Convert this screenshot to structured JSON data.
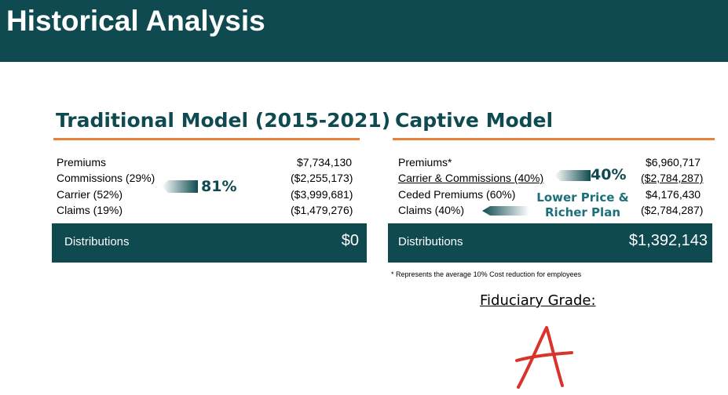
{
  "header": {
    "title": "Historical Analysis"
  },
  "traditional": {
    "title": "Traditional Model (2015-2021)",
    "rows": [
      {
        "label": "Premiums",
        "value": "$7,734,130"
      },
      {
        "label": "Commissions (29%)",
        "value": "($2,255,173)"
      },
      {
        "label": "Carrier (52%)",
        "value": "($3,999,681)"
      },
      {
        "label": "Claims (19%)",
        "value": "($1,479,276)"
      }
    ],
    "callout_pct": "81%",
    "distributions_label": "Distributions",
    "distributions_value": "$0"
  },
  "captive": {
    "title": "Captive Model",
    "rows": [
      {
        "label": "Premiums*",
        "value": "$6,960,717"
      },
      {
        "label": "Carrier & Commissions (40%)",
        "value": "($2,784,287)"
      },
      {
        "label": "Ceded Premiums (60%)",
        "value": "$4,176,430"
      },
      {
        "label": "Claims (40%)",
        "value": "($2,784,287)"
      }
    ],
    "callout_pct": "40%",
    "callout_text_line1": "Lower Price &",
    "callout_text_line2": "Richer Plan",
    "distributions_label": "Distributions",
    "distributions_value": "$1,392,143",
    "footnote": "*  Represents the average 10% Cost reduction for employees"
  },
  "grade": {
    "label": "Fiduciary Grade:",
    "value": "A"
  },
  "colors": {
    "teal": "#0e4a4f",
    "accent": "#e8823a",
    "grade": "#d9342b"
  }
}
